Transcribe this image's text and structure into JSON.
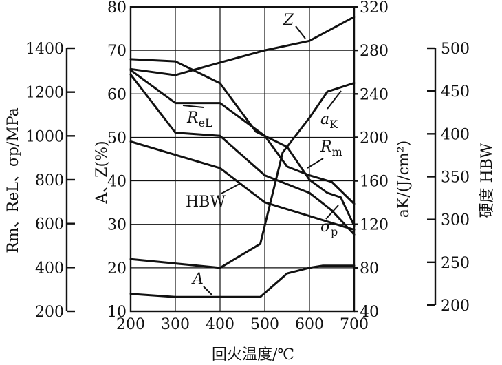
{
  "chart_data": {
    "type": "line",
    "xlabel": "回火温度/℃",
    "x_ticks": [
      200,
      300,
      400,
      500,
      600,
      700
    ],
    "xlim": [
      200,
      700
    ],
    "grid": true,
    "axes": {
      "stress": {
        "label": "Rm、ReL、σp/MPa",
        "ticks": [
          200,
          400,
          600,
          800,
          1000,
          1200,
          1400
        ],
        "range": [
          200,
          1400
        ]
      },
      "percent": {
        "label": "A、Z(%)",
        "ticks": [
          10,
          20,
          30,
          40,
          50,
          60,
          70,
          80
        ],
        "range": [
          10,
          80
        ]
      },
      "impact": {
        "label": "aK/(J/cm²)",
        "ticks": [
          40,
          80,
          120,
          160,
          200,
          240,
          280,
          320
        ],
        "range": [
          40,
          320
        ]
      },
      "hardness": {
        "label": "硬度 HBW",
        "ticks": [
          200,
          250,
          300,
          350,
          400,
          450,
          500
        ],
        "range": [
          200,
          500
        ]
      }
    },
    "series": [
      {
        "name": "Z",
        "axis": "percent",
        "x": [
          200,
          300,
          400,
          500,
          600,
          700
        ],
        "values": [
          65.7,
          64.3,
          67.2,
          70,
          72.2,
          77.7
        ]
      },
      {
        "name": "ReL",
        "axis": "stress",
        "x": [
          200,
          300,
          400,
          500,
          600,
          650,
          700
        ],
        "values": [
          1280,
          1015,
          1000,
          820,
          740,
          660,
          550
        ]
      },
      {
        "name": "Rm",
        "axis": "stress",
        "x": [
          200,
          300,
          400,
          500,
          550,
          600,
          650,
          700
        ],
        "values": [
          1300,
          1150,
          1150,
          1000,
          860,
          820,
          790,
          690
        ]
      },
      {
        "name": "σp",
        "axis": "stress",
        "x": [
          200,
          300,
          400,
          480,
          550,
          600,
          640,
          670,
          700
        ],
        "values": [
          1350,
          1340,
          1240,
          1020,
          950,
          800,
          740,
          720,
          590
        ]
      },
      {
        "name": "HBW",
        "axis": "hardness",
        "x": [
          200,
          400,
          500,
          700
        ],
        "values": [
          391,
          360,
          320,
          288
        ]
      },
      {
        "name": "aK",
        "axis": "impact",
        "x": [
          200,
          400,
          490,
          540,
          600,
          640,
          700
        ],
        "values": [
          88,
          80,
          102,
          186,
          218,
          242,
          250
        ]
      },
      {
        "name": "A",
        "axis": "percent",
        "x": [
          200,
          300,
          400,
          490,
          550,
          600,
          630,
          700
        ],
        "values": [
          14,
          13.3,
          13.3,
          13.3,
          18.7,
          20,
          20.5,
          20.5
        ]
      }
    ],
    "curve_labels": {
      "Z": "Z",
      "ReL": "ReL",
      "aK": "aK",
      "Rm": "Rm",
      "HBW": "HBW",
      "σp": "σp",
      "A": "A"
    }
  }
}
